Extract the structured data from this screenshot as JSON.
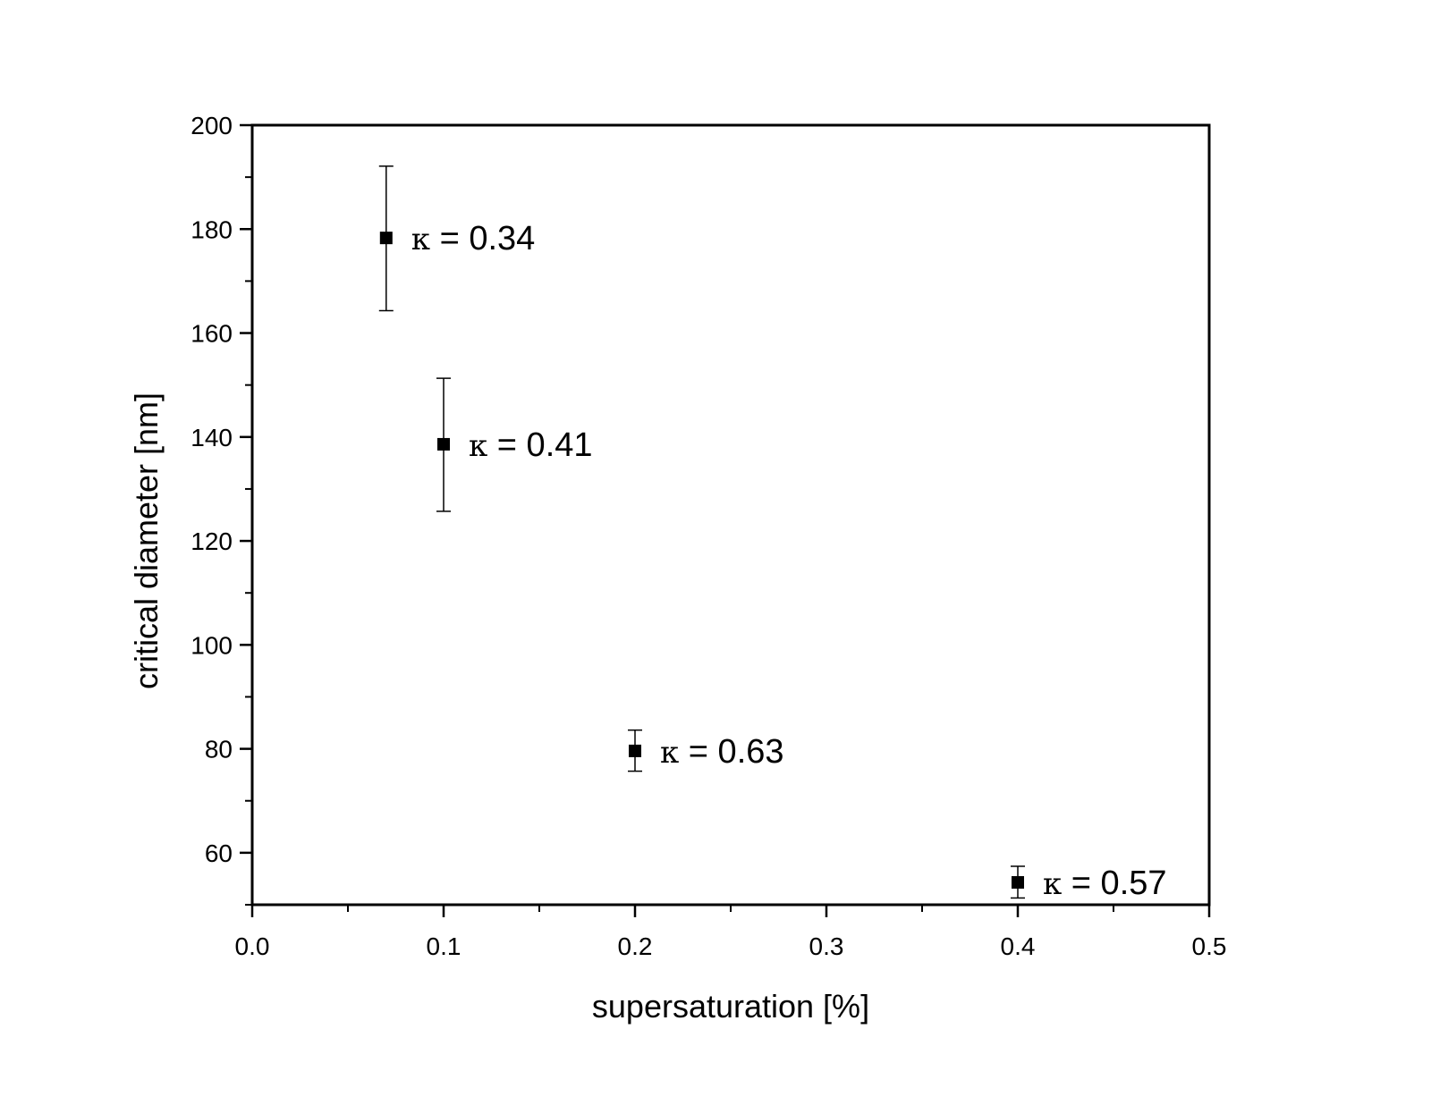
{
  "chart_data": {
    "type": "scatter",
    "title": "",
    "xlabel": "supersaturation [%]",
    "ylabel": "critical diameter [nm]",
    "xlim": [
      0.0,
      0.5
    ],
    "ylim": [
      50,
      200
    ],
    "xticks": [
      0.0,
      0.1,
      0.2,
      0.3,
      0.4,
      0.5
    ],
    "xtick_labels": [
      "0.0",
      "0.1",
      "0.2",
      "0.3",
      "0.4",
      "0.5"
    ],
    "yticks": [
      60,
      80,
      100,
      120,
      140,
      160,
      180,
      200
    ],
    "ytick_labels": [
      "60",
      "80",
      "100",
      "120",
      "140",
      "160",
      "180",
      "200"
    ],
    "grid": false,
    "legend": "none",
    "marker": "square",
    "color": "#000000",
    "series": [
      {
        "points": [
          {
            "x": 0.07,
            "y": 178.3,
            "err_low": 164.3,
            "err_high": 192.1,
            "label_symbol": "κ",
            "label_text": "= 0.34"
          },
          {
            "x": 0.1,
            "y": 138.6,
            "err_low": 125.7,
            "err_high": 151.3,
            "label_symbol": "κ",
            "label_text": "= 0.41"
          },
          {
            "x": 0.2,
            "y": 79.6,
            "err_low": 75.7,
            "err_high": 83.6,
            "label_symbol": "κ",
            "label_text": "= 0.63"
          },
          {
            "x": 0.4,
            "y": 54.3,
            "err_low": 51.3,
            "err_high": 57.4,
            "label_symbol": "κ",
            "label_text": "= 0.57"
          }
        ]
      }
    ]
  }
}
